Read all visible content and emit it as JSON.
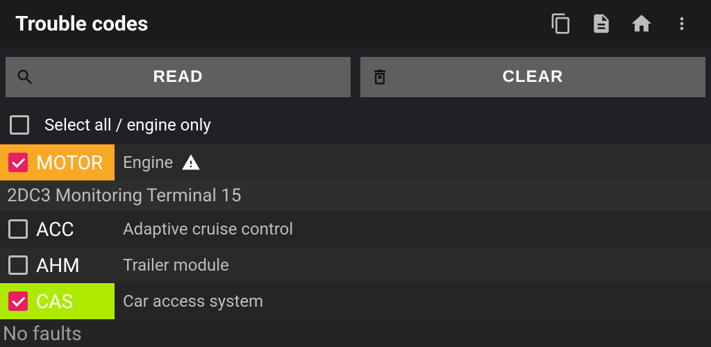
{
  "colors": {
    "bg": "#202124",
    "titlebar_bg": "#1b1b1b",
    "button_bg": "#5f5f5f",
    "icon_gray": "#bdbdbd",
    "text_white": "#ffffff",
    "text_gray": "#bdbdbd",
    "checkbox_checked_bg": "#e91e63",
    "motor_tag_bg": "#f9a825",
    "motor_tag_text": "#ffffff",
    "cas_tag_bg": "#aeea00",
    "cas_tag_text": "#ffffff"
  },
  "header": {
    "title": "Trouble codes",
    "icons": [
      "copy-icon",
      "document-icon",
      "home-icon",
      "more-icon"
    ]
  },
  "actions": {
    "read_label": "READ",
    "clear_label": "CLEAR"
  },
  "select_all": {
    "checked": false,
    "label": "Select all / engine only"
  },
  "modules": [
    {
      "code": "MOTOR",
      "desc": "Engine",
      "checked": true,
      "tag_bg": "#f9a825",
      "tag_text": "#ffffff",
      "warning": true,
      "faults": [
        "2DC3 Monitoring Terminal 15"
      ]
    },
    {
      "code": "ACC",
      "desc": "Adaptive cruise control",
      "checked": false,
      "tag_bg": "transparent",
      "tag_text": "#ffffff",
      "warning": false,
      "faults": []
    },
    {
      "code": "AHM",
      "desc": "Trailer module",
      "checked": false,
      "tag_bg": "transparent",
      "tag_text": "#ffffff",
      "warning": false,
      "faults": []
    },
    {
      "code": "CAS",
      "desc": "Car access system",
      "checked": true,
      "tag_bg": "#aeea00",
      "tag_text": "#ffffff",
      "warning": false,
      "faults": []
    }
  ],
  "status_text": "No faults"
}
